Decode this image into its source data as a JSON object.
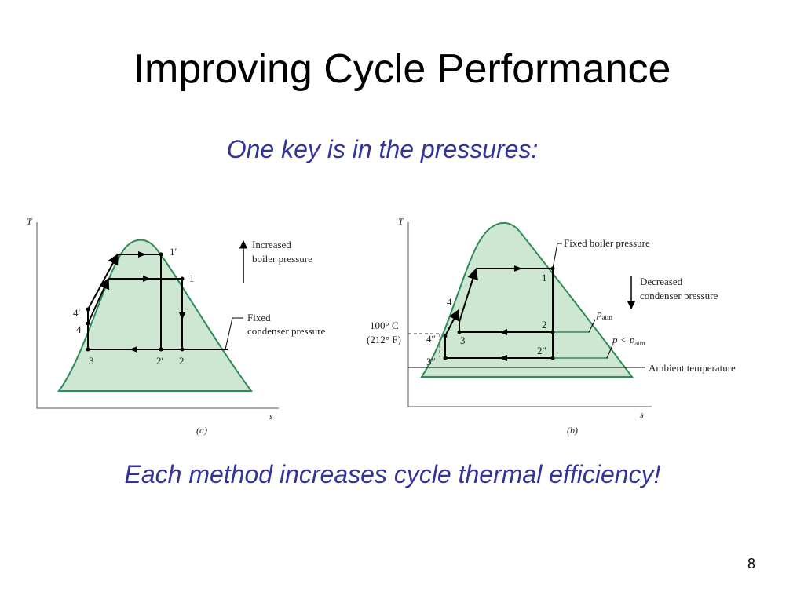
{
  "slide": {
    "title": "Improving Cycle Performance",
    "subtitle": "One key is in the pressures:",
    "conclusion": "Each method increases cycle thermal efficiency!",
    "page_number": "8"
  },
  "colors": {
    "title": "#000000",
    "accent_text": "#333399",
    "dome_fill": "#cde7d2",
    "dome_stroke": "#2e8b57",
    "cycle_line": "#000000"
  },
  "figure_a": {
    "caption": "(a)",
    "axis_t": "T",
    "axis_s": "s",
    "labels": {
      "p1prime": "1′",
      "p1": "1",
      "p4prime": "4′",
      "p4": "4",
      "p3": "3",
      "p2prime": "2′",
      "p2": "2"
    },
    "annot_increased_l1": "Increased",
    "annot_increased_l2": "boiler pressure",
    "annot_fixed_l1": "Fixed",
    "annot_fixed_l2": "condenser pressure"
  },
  "figure_b": {
    "caption": "(b)",
    "axis_t": "T",
    "axis_s": "s",
    "labels": {
      "p1": "1",
      "p2": "2",
      "p2dprime": "2″",
      "p3": "3",
      "p4": "4",
      "p4dprime": "4″",
      "p3dprime": "3″"
    },
    "annot_fixed_boiler": "Fixed boiler pressure",
    "annot_decreased_l1": "Decreased",
    "annot_decreased_l2": "condenser pressure",
    "temp_c": "100° C",
    "temp_f": "(212° F)",
    "p_atm_base": "p",
    "p_atm_sub": "atm",
    "p_less_base": "p < p",
    "p_less_sub": "atm",
    "ambient": "Ambient temperature"
  }
}
